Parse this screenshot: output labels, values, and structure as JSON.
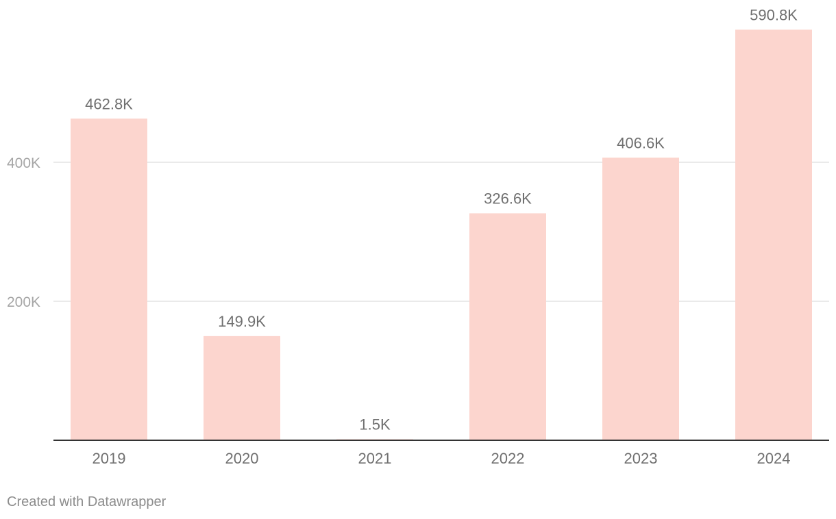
{
  "chart_data": {
    "type": "bar",
    "title": "",
    "xlabel": "",
    "ylabel": "",
    "categories": [
      "2019",
      "2020",
      "2021",
      "2022",
      "2023",
      "2024"
    ],
    "values": [
      462800,
      149900,
      1500,
      326600,
      406600,
      590800
    ],
    "value_labels": [
      "462.8K",
      "149.9K",
      "1.5K",
      "326.6K",
      "406.6K",
      "590.8K"
    ],
    "ylim": [
      0,
      600000
    ],
    "y_ticks": [
      200000,
      400000
    ],
    "y_tick_labels": [
      "200K",
      "400K"
    ],
    "grid": true,
    "legend": "none",
    "colors": {
      "bar": "#fcd5ce",
      "gridline": "#e3e3e3",
      "baseline": "#333333"
    }
  },
  "footer": {
    "credit": "Created with Datawrapper"
  }
}
